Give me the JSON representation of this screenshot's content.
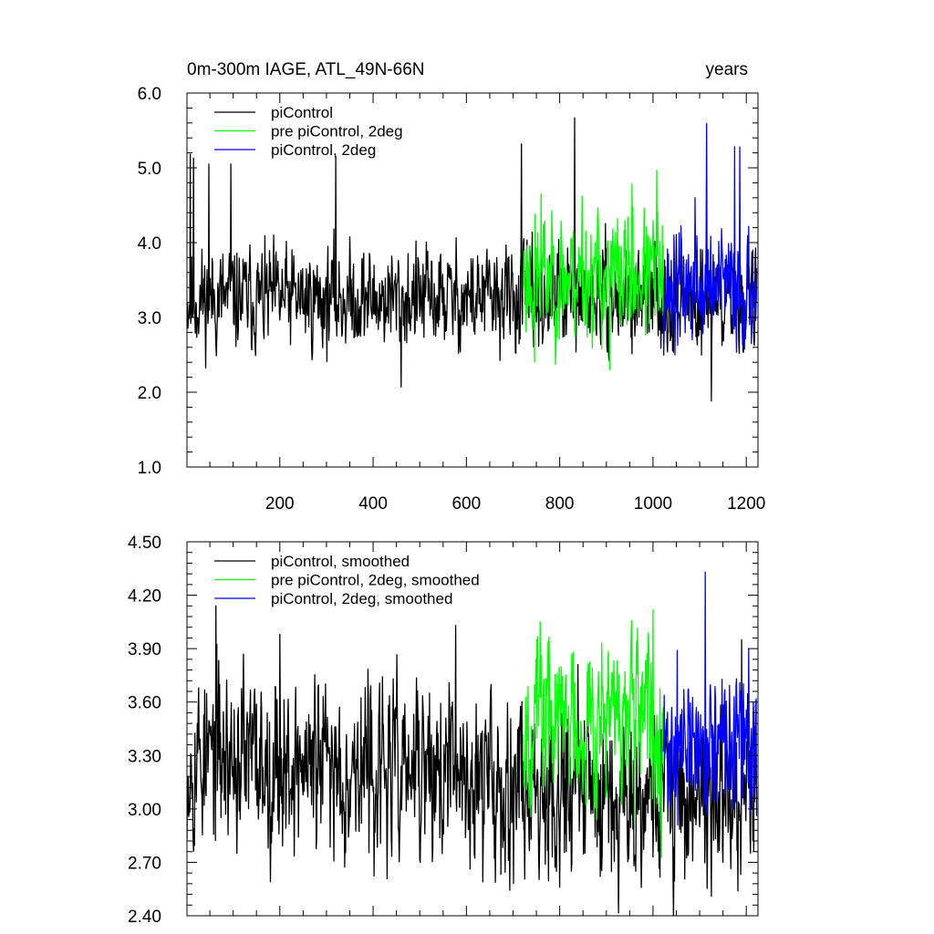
{
  "chart_data": [
    {
      "type": "line",
      "title_left": "0m-300m IAGE, ATL_49N-66N",
      "title_right": "years",
      "xlim": [
        1,
        1225
      ],
      "ylim": [
        1.0,
        6.0
      ],
      "xticks": [
        200,
        400,
        600,
        800,
        1000,
        1200
      ],
      "xtick_labels": [
        "200",
        "400",
        "600",
        "800",
        "1000",
        "1200"
      ],
      "yticks": [
        1.0,
        2.0,
        3.0,
        4.0,
        5.0,
        6.0
      ],
      "ytick_labels": [
        "1.0",
        "2.0",
        "3.0",
        "4.0",
        "5.0",
        "6.0"
      ],
      "legend_position": "top-left",
      "series": [
        {
          "name": "piControl",
          "color": "#000000",
          "x_start": 1,
          "x_end": 1222,
          "mean": 3.25,
          "amp": 0.45,
          "trend": 0.0,
          "seed": 11,
          "spikes": [
            [
              8,
              5.18
            ],
            [
              15,
              5.13
            ],
            [
              48,
              5.05
            ],
            [
              95,
              5.05
            ],
            [
              320,
              5.15
            ],
            [
              718,
              5.32
            ],
            [
              832,
              5.67
            ],
            [
              1125,
              1.88
            ],
            [
              460,
              2.07
            ]
          ]
        },
        {
          "name": "pre piControl, 2deg",
          "color": "#00ff00",
          "x_start": 722,
          "x_end": 1022,
          "mean": 3.55,
          "amp": 0.55,
          "trend": 0.0,
          "seed": 23,
          "spikes": [
            [
              760,
              4.65
            ],
            [
              848,
              4.62
            ],
            [
              955,
              4.78
            ],
            [
              1008,
              4.97
            ],
            [
              907,
              2.3
            ],
            [
              746,
              2.4
            ]
          ]
        },
        {
          "name": "piControl, 2deg",
          "color": "#0000ff",
          "x_start": 1022,
          "x_end": 1222,
          "mean": 3.4,
          "amp": 0.5,
          "trend": 0.0,
          "seed": 37,
          "spikes": [
            [
              1115,
              5.59
            ],
            [
              1175,
              5.28
            ],
            [
              1186,
              5.28
            ],
            [
              1090,
              4.6
            ],
            [
              1047,
              2.5
            ]
          ]
        }
      ]
    },
    {
      "type": "line",
      "xlim": [
        1,
        1225
      ],
      "ylim": [
        2.4,
        4.5
      ],
      "xticks": [
        200,
        400,
        600,
        800,
        1000,
        1200
      ],
      "yticks": [
        2.4,
        2.7,
        3.0,
        3.3,
        3.6,
        3.9,
        4.2,
        4.5
      ],
      "ytick_labels": [
        "2.40",
        "2.70",
        "3.00",
        "3.30",
        "3.60",
        "3.90",
        "4.20",
        "4.50"
      ],
      "legend_position": "top-left",
      "series": [
        {
          "name": "piControl, smoothed",
          "color": "#000000",
          "x_start": 1,
          "x_end": 1222,
          "mean": 3.3,
          "amp": 0.32,
          "trend": -0.0002,
          "seed": 53,
          "spikes": [
            [
              63,
              4.14
            ],
            [
              122,
              3.87
            ],
            [
              200,
              3.98
            ],
            [
              577,
              4.03
            ],
            [
              175,
              2.78
            ],
            [
              635,
              2.59
            ],
            [
              1125,
              2.51
            ],
            [
              1190,
              3.95
            ]
          ]
        },
        {
          "name": "pre piControl, 2deg, smoothed",
          "color": "#00ff00",
          "x_start": 722,
          "x_end": 1022,
          "mean": 3.5,
          "amp": 0.3,
          "trend": 0.0,
          "seed": 67,
          "spikes": [
            [
              758,
              4.05
            ],
            [
              1000,
              4.12
            ],
            [
              890,
              3.93
            ],
            [
              960,
              2.92
            ]
          ]
        },
        {
          "name": "piControl, 2deg, smoothed",
          "color": "#0000ff",
          "x_start": 1022,
          "x_end": 1222,
          "mean": 3.35,
          "amp": 0.25,
          "trend": 0.0,
          "seed": 71,
          "spikes": [
            [
              1112,
              4.33
            ],
            [
              1052,
              3.89
            ],
            [
              1205,
              3.9
            ],
            [
              1222,
              2.96
            ]
          ]
        }
      ]
    }
  ]
}
